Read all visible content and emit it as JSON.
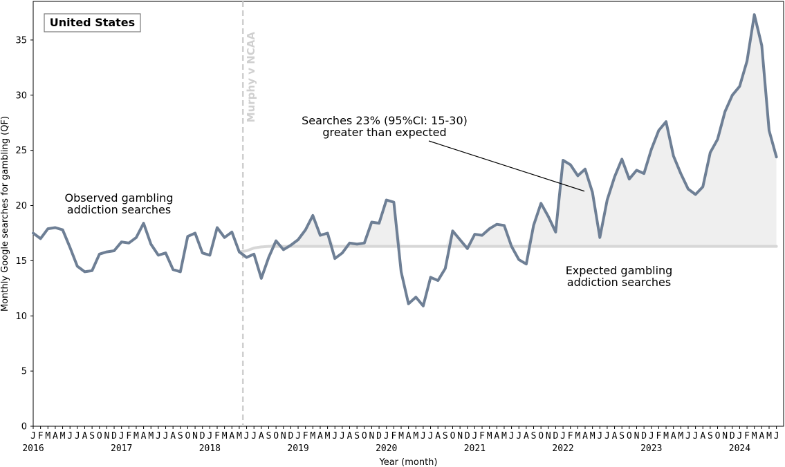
{
  "chart_data": {
    "type": "line",
    "country": "United States",
    "xlabel": "Year (month)",
    "ylabel": "Monthly Google searches for gambling (QF)",
    "ylim": [
      0,
      38.5
    ],
    "yticks": [
      0,
      5,
      10,
      15,
      20,
      25,
      30,
      35
    ],
    "start": "2016-01",
    "month_letters": [
      "J",
      "F",
      "M",
      "A",
      "M",
      "J",
      "J",
      "A",
      "S",
      "O",
      "N",
      "D"
    ],
    "years": [
      "2016",
      "2017",
      "2018",
      "2019",
      "2020",
      "2021",
      "2022",
      "2023",
      "2024"
    ],
    "event": {
      "label": "Murphy v NCAA",
      "month_index": 28.5
    },
    "series": [
      {
        "name": "Observed gambling addiction searches",
        "color": "#6e7f95",
        "values": [
          17.5,
          17.0,
          17.9,
          18.0,
          17.8,
          16.2,
          14.5,
          14.0,
          14.1,
          15.6,
          15.8,
          15.9,
          16.7,
          16.6,
          17.1,
          18.4,
          16.5,
          15.5,
          15.7,
          14.2,
          14.0,
          17.2,
          17.5,
          15.7,
          15.5,
          18.0,
          17.1,
          17.6,
          15.8,
          15.3,
          15.6,
          13.4,
          15.3,
          16.8,
          16.0,
          16.4,
          16.9,
          17.8,
          19.1,
          17.3,
          17.5,
          15.2,
          15.7,
          16.6,
          16.5,
          16.6,
          18.5,
          18.4,
          20.5,
          20.3,
          14.0,
          11.1,
          11.7,
          10.9,
          13.5,
          13.2,
          14.3,
          17.7,
          16.9,
          16.1,
          17.4,
          17.3,
          17.9,
          18.3,
          18.2,
          16.3,
          15.1,
          14.7,
          18.2,
          20.2,
          19.0,
          17.6,
          24.1,
          23.7,
          22.7,
          23.3,
          21.2,
          17.1,
          20.5,
          22.6,
          24.2,
          22.4,
          23.2,
          22.9,
          25.1,
          26.8,
          27.6,
          24.5,
          22.9,
          21.5,
          21.0,
          21.7,
          24.8,
          26.0,
          28.5,
          30.0,
          30.8,
          33.1,
          37.3,
          34.5,
          26.8,
          24.4
        ]
      },
      {
        "name": "Expected gambling addiction searches",
        "color": "#d7d7d7",
        "start_index": 28,
        "values": [
          15.8,
          15.9,
          16.15,
          16.25,
          16.3,
          16.3
        ]
      }
    ],
    "annotations": [
      {
        "id": "observed",
        "lines": [
          "Observed gambling",
          "addiction searches"
        ]
      },
      {
        "id": "expected",
        "lines": [
          "Expected gambling",
          "addiction searches"
        ]
      },
      {
        "id": "effect",
        "lines": [
          "Searches 23% (95%CI: 15-30)",
          "greater than expected"
        ],
        "arrow_to_month": 75,
        "arrow_to_value": 21.3
      }
    ]
  }
}
